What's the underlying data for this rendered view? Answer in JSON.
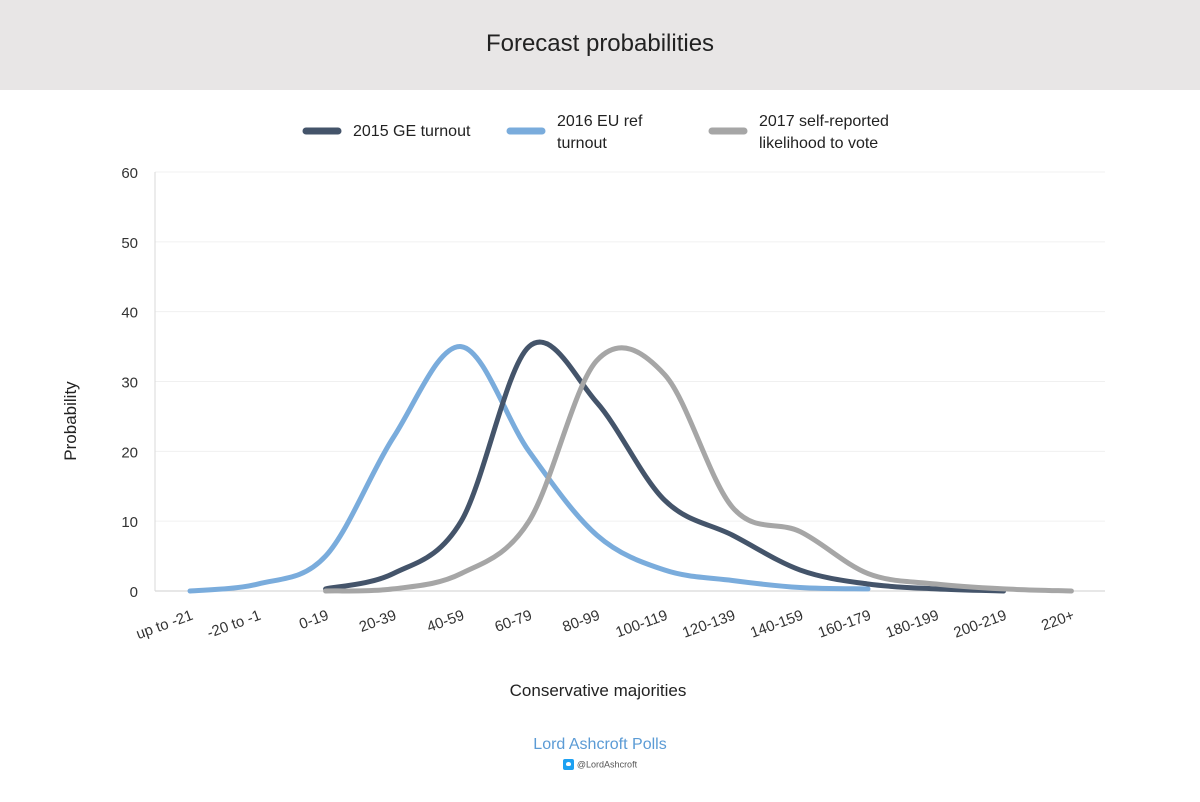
{
  "header": {
    "title": "Forecast probabilities"
  },
  "footer": {
    "brand": "Lord Ashcroft Polls",
    "handle": "@LordAshcroft",
    "icon": "twitter-icon"
  },
  "chart_data": {
    "type": "line",
    "title": "Forecast probabilities",
    "xlabel": "Conservative majorities",
    "ylabel": "Probability",
    "ylim": [
      0,
      60
    ],
    "yticks": [
      0,
      10,
      20,
      30,
      40,
      50,
      60
    ],
    "grid": true,
    "legend_position": "top",
    "categories": [
      "up to -21",
      "-20 to -1",
      "0-19",
      "20-39",
      "40-59",
      "60-79",
      "80-99",
      "100-119",
      "120-139",
      "140-159",
      "160-179",
      "180-199",
      "200-219",
      "220+"
    ],
    "series": [
      {
        "name": "2015 GE turnout",
        "color": "#44546a",
        "values": [
          null,
          null,
          0.3,
          2.5,
          10,
          35,
          27,
          13,
          8,
          3,
          1,
          0.3,
          0,
          null
        ]
      },
      {
        "name": "2016 EU ref turnout",
        "color": "#7aacdc",
        "values": [
          0,
          1,
          5,
          22,
          35,
          20,
          8,
          3,
          1.5,
          0.5,
          0.3,
          null,
          null,
          null
        ]
      },
      {
        "name": "2017 self-reported likelihood to vote",
        "color": "#a6a6a6",
        "values": [
          null,
          null,
          0,
          0.3,
          2.5,
          10,
          33,
          31,
          12,
          8.5,
          2.5,
          1,
          0.3,
          0
        ]
      }
    ]
  }
}
